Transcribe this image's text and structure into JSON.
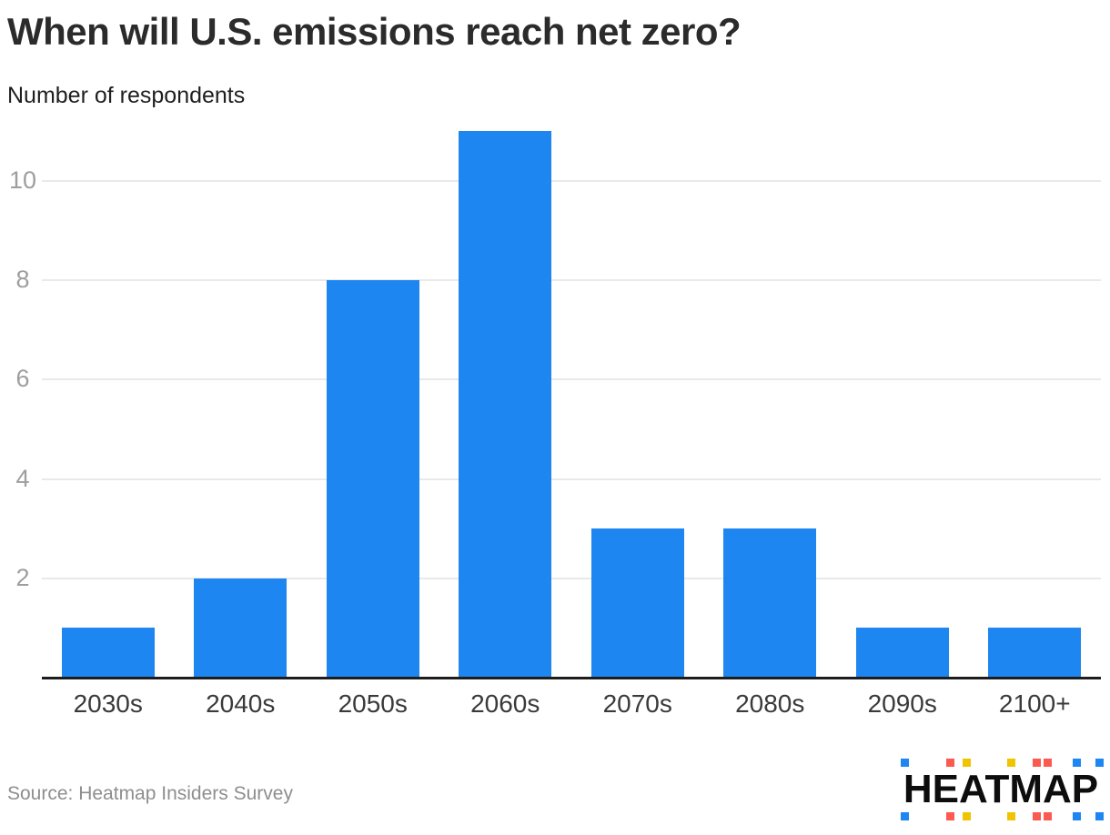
{
  "chart_data": {
    "type": "bar",
    "title": "When will U.S. emissions reach net zero?",
    "subtitle": "Number of respondents",
    "categories": [
      "2030s",
      "2040s",
      "2050s",
      "2060s",
      "2070s",
      "2080s",
      "2090s",
      "2100+"
    ],
    "values": [
      1,
      2,
      8,
      11,
      3,
      3,
      1,
      1
    ],
    "y_ticks": [
      2,
      4,
      6,
      8,
      10
    ],
    "ylim": [
      0,
      11
    ],
    "grid": true,
    "legend": "none",
    "bar_color": "#1e86f0",
    "gridline_color": "#e9e9e9",
    "axis_line_color": "#1d1d1d",
    "y_tick_color": "#9e9e9e",
    "x_tick_color": "#3a3a3a"
  },
  "footer": {
    "source_label": "Source: Heatmap Insiders Survey",
    "logo_text": "HEATMAP",
    "logo_colors": {
      "blue": "#1e86f0",
      "red": "#fb5a50",
      "yellow": "#f0c400"
    },
    "logo_square_sequence": [
      "blue",
      "red",
      "yellow",
      "yellow",
      "red",
      "red",
      "blue",
      "blue"
    ]
  }
}
